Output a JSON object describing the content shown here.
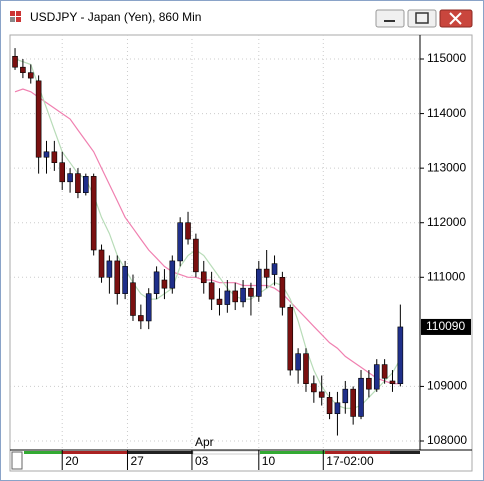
{
  "chart_data": {
    "type": "candlestick",
    "title": "USDJPY - Japan (Yen), 860 Min",
    "x": [
      0,
      1,
      2,
      3,
      4,
      5,
      6,
      7,
      8,
      9,
      10,
      11,
      12,
      13,
      14,
      15,
      16,
      17,
      18,
      19,
      20,
      21,
      22,
      23,
      24,
      25,
      26,
      27,
      28,
      29,
      30,
      31,
      32,
      33,
      34,
      35,
      36,
      37,
      38,
      39,
      40,
      41,
      42,
      43,
      44,
      45,
      46,
      47,
      48,
      49
    ],
    "open": [
      115050,
      114850,
      114750,
      114600,
      113200,
      113300,
      113100,
      112750,
      112900,
      112550,
      112850,
      111500,
      111000,
      111300,
      110700,
      110900,
      110300,
      110200,
      110700,
      110950,
      110800,
      111300,
      112000,
      111700,
      111100,
      110900,
      110600,
      110500,
      110750,
      110550,
      110800,
      110650,
      111150,
      111050,
      111000,
      110450,
      109300,
      109600,
      109050,
      108900,
      108800,
      108500,
      108700,
      108950,
      108450,
      109150,
      108950,
      109400,
      109100,
      109050
    ],
    "high": [
      115200,
      115000,
      114900,
      114700,
      113500,
      113500,
      113300,
      113000,
      113000,
      112900,
      112900,
      111600,
      111400,
      111400,
      111300,
      111050,
      110500,
      110800,
      111200,
      111150,
      111400,
      112100,
      112200,
      111800,
      111300,
      111100,
      110800,
      110950,
      110900,
      110950,
      110900,
      111300,
      111500,
      111400,
      111100,
      110500,
      109700,
      109700,
      109200,
      109200,
      108900,
      108900,
      109100,
      109000,
      109300,
      109300,
      109500,
      109500,
      109300,
      110500
    ],
    "low": [
      114800,
      114650,
      114550,
      112900,
      112900,
      112950,
      112600,
      112550,
      112450,
      112500,
      111400,
      110900,
      110700,
      110500,
      110600,
      110200,
      110050,
      110050,
      110600,
      110600,
      110700,
      111200,
      111600,
      111000,
      110700,
      110400,
      110300,
      110350,
      110400,
      110450,
      110300,
      110550,
      110800,
      110850,
      110300,
      109200,
      109050,
      108900,
      108700,
      108650,
      108400,
      108100,
      108500,
      108300,
      108400,
      108800,
      108900,
      109050,
      108900,
      109000
    ],
    "close": [
      114850,
      114750,
      114650,
      113200,
      113300,
      113100,
      112750,
      112900,
      112550,
      112850,
      111500,
      111000,
      111300,
      110700,
      111200,
      110300,
      110200,
      110700,
      111100,
      110800,
      111300,
      112000,
      111700,
      111100,
      110900,
      110600,
      110500,
      110750,
      110550,
      110800,
      110650,
      111150,
      111000,
      111250,
      110450,
      109300,
      109600,
      109050,
      108900,
      108800,
      108500,
      108700,
      108950,
      108450,
      109150,
      108950,
      109400,
      109150,
      109050,
      110090
    ],
    "up_color": "#1f2f8a",
    "down_color": "#7a1010",
    "series": [
      {
        "color": "#f080b0",
        "values": [
          114400,
          114450,
          114400,
          114300,
          114200,
          114100,
          114000,
          113900,
          113700,
          113500,
          113300,
          113000,
          112700,
          112400,
          112100,
          111900,
          111700,
          111500,
          111350,
          111200,
          111100,
          111050,
          111000,
          111000,
          110950,
          110950,
          110900,
          110900,
          110900,
          110850,
          110850,
          110850,
          110850,
          110800,
          110700,
          110550,
          110400,
          110250,
          110100,
          109950,
          109800,
          109700,
          109550,
          109450,
          109350,
          109250,
          109150,
          109100,
          109050,
          109050
        ]
      },
      {
        "color": "#b8dcb8",
        "values": [
          115000,
          114950,
          114900,
          114500,
          114100,
          113700,
          113300,
          113100,
          112900,
          112800,
          112500,
          112100,
          111800,
          111400,
          111150,
          110900,
          110700,
          110600,
          110600,
          110700,
          110800,
          111200,
          111400,
          111500,
          111400,
          111200,
          111000,
          110800,
          110650,
          110600,
          110600,
          110700,
          110800,
          110900,
          110850,
          110600,
          110200,
          109700,
          109300,
          109000,
          108800,
          108650,
          108600,
          108600,
          108650,
          108800,
          108950,
          109100,
          109250,
          109500
        ]
      }
    ],
    "xlim": [
      -0.64,
      51.5
    ],
    "xticks": [
      {
        "value": 6,
        "label": "20"
      },
      {
        "value": 14.3,
        "label": "27"
      },
      {
        "value": 22.5,
        "label": "03"
      },
      {
        "value": 31,
        "label": "10"
      },
      {
        "value": 39.2,
        "label": "17-02:00"
      }
    ],
    "month_label": "Apr",
    "ylim": [
      107835,
      115440
    ],
    "yticks": [
      108000,
      109000,
      111000,
      112000,
      113000,
      114000,
      115000
    ],
    "grid": true
  }
}
